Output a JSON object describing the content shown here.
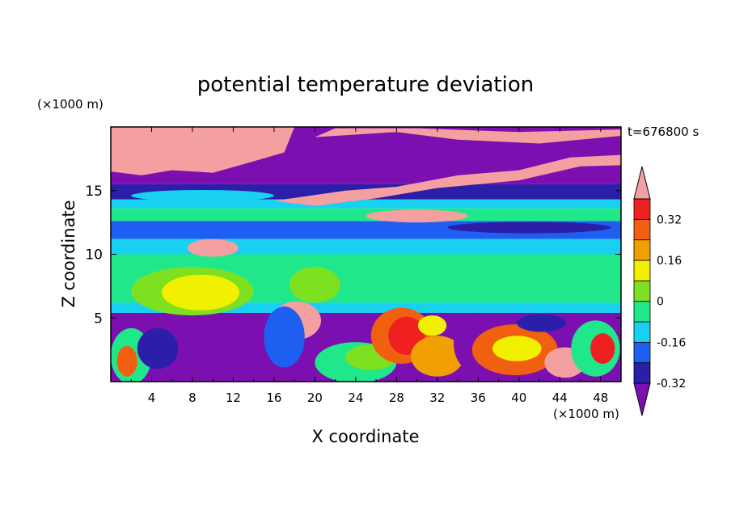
{
  "chart_data": {
    "type": "heatmap",
    "title": "potential temperature deviation",
    "xlabel": "X coordinate",
    "ylabel": "Z coordinate",
    "x_unit": "(×1000 m)",
    "y_unit": "(×1000 m)",
    "time_label": "t=676800 s",
    "xlim": [
      0,
      50
    ],
    "ylim": [
      0,
      20
    ],
    "x_ticks": [
      "4",
      "8",
      "12",
      "16",
      "20",
      "24",
      "28",
      "32",
      "36",
      "40",
      "44",
      "48"
    ],
    "y_ticks": [
      "5",
      "10",
      "15"
    ],
    "colorbar": {
      "tick_labels": [
        "0.32",
        "0.16",
        "0",
        "-0.16",
        "-0.32"
      ],
      "tick_values": [
        0.32,
        0.16,
        0,
        -0.16,
        -0.32
      ],
      "levels": [
        -0.4,
        -0.32,
        -0.24,
        -0.16,
        -0.08,
        0,
        0.08,
        0.16,
        0.24,
        0.32,
        0.4
      ],
      "colors": [
        "#7b0fb0",
        "#2b1ea8",
        "#1e5ef0",
        "#18d0f0",
        "#20e88a",
        "#7de020",
        "#f0f000",
        "#f0a000",
        "#f06010",
        "#f02020",
        "#f5a0a0"
      ],
      "extend": "both"
    },
    "layers": [
      {
        "z_range": [
          0,
          5.4
        ],
        "description_value": "mixed"
      },
      {
        "z_range": [
          5.4,
          6.2
        ],
        "value": -0.12
      },
      {
        "z_range": [
          6.2,
          9.5
        ],
        "value": 0.05
      },
      {
        "z_range": [
          9.5,
          13
        ],
        "value": -0.1
      },
      {
        "z_range": [
          13,
          15.5
        ],
        "value": -0.2
      },
      {
        "z_range": [
          15.5,
          20
        ],
        "value": -0.36
      }
    ]
  }
}
